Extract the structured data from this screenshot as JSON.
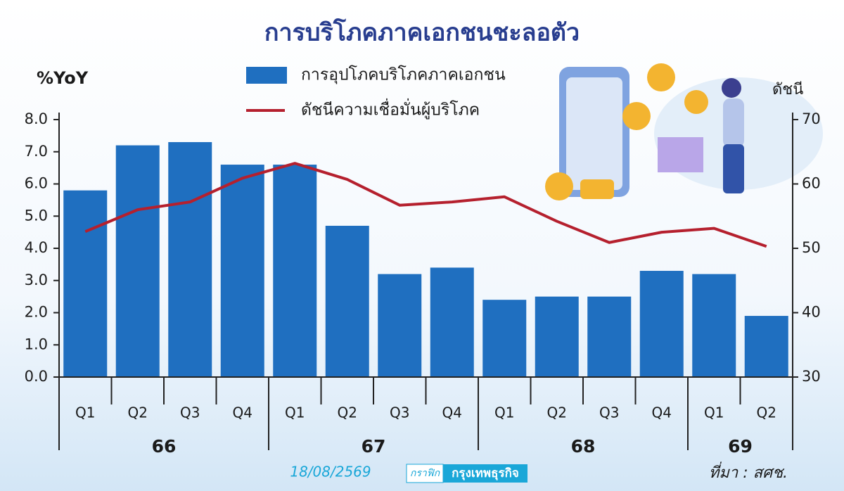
{
  "chart_data": {
    "type": "bar_line",
    "title": "การบริโภคภาคเอกชนชะลอตัว",
    "y_label": "%YoY",
    "y2_label": "ดัชนี",
    "categories": [
      "Q1",
      "Q2",
      "Q3",
      "Q4",
      "Q1",
      "Q2",
      "Q3",
      "Q4",
      "Q1",
      "Q2",
      "Q3",
      "Q4",
      "Q1",
      "Q2"
    ],
    "groups": [
      "66",
      "67",
      "68",
      "69"
    ],
    "series": [
      {
        "name": "การอุปโภคบริโภคภาคเอกชน",
        "type": "bar",
        "color": "#1f6fc0",
        "values": [
          5.8,
          7.2,
          7.3,
          6.6,
          6.6,
          4.7,
          3.2,
          3.4,
          2.4,
          2.5,
          2.5,
          3.3,
          3.2,
          1.9
        ]
      },
      {
        "name": "ดัชนีความเชื่อมั่นผู้บริโภค",
        "type": "line",
        "axis": "y2",
        "color": "#b5202e",
        "values": [
          52.6,
          56.0,
          57.2,
          60.9,
          63.2,
          60.7,
          56.7,
          57.2,
          58.0,
          54.2,
          50.9,
          52.5,
          53.1,
          50.3
        ]
      }
    ],
    "ylim": [
      0,
      8
    ],
    "yticks": [
      {
        "value": 0,
        "label": "0.0"
      },
      {
        "value": 1,
        "label": "1.0"
      },
      {
        "value": 2,
        "label": "2.0"
      },
      {
        "value": 3,
        "label": "3.0"
      },
      {
        "value": 4,
        "label": "4.0"
      },
      {
        "value": 5,
        "label": "5.0"
      },
      {
        "value": 6,
        "label": "6.0"
      },
      {
        "value": 7,
        "label": "7.0"
      },
      {
        "value": 8,
        "label": "8.0"
      }
    ],
    "y2lim": [
      30,
      70
    ],
    "y2ticks": [
      30,
      40,
      50,
      60,
      70
    ],
    "date": "18/08/2569",
    "credit": [
      "กราฟิก",
      "กรุงเทพธุรกิจ"
    ],
    "source": "ที่มา : สศช."
  }
}
